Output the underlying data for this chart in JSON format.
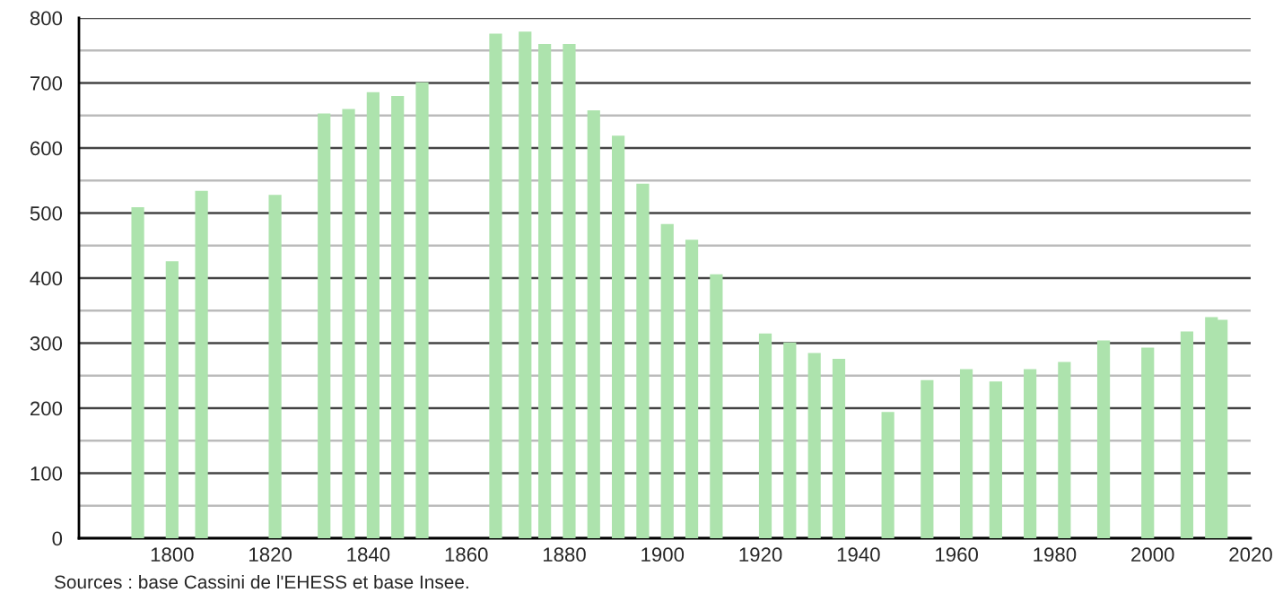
{
  "chart_data": {
    "type": "bar",
    "x": [
      1793,
      1800,
      1806,
      1821,
      1831,
      1836,
      1841,
      1846,
      1851,
      1866,
      1872,
      1876,
      1881,
      1886,
      1891,
      1896,
      1901,
      1906,
      1911,
      1921,
      1926,
      1931,
      1936,
      1946,
      1954,
      1962,
      1968,
      1975,
      1982,
      1990,
      1999,
      2007,
      2012,
      2014
    ],
    "values": [
      509,
      426,
      534,
      528,
      653,
      660,
      686,
      680,
      701,
      776,
      779,
      760,
      760,
      658,
      619,
      545,
      483,
      459,
      406,
      315,
      301,
      285,
      276,
      194,
      243,
      260,
      241,
      260,
      271,
      304,
      293,
      318,
      340,
      336
    ],
    "color": "#ade3ad",
    "xlim": [
      1781,
      2020
    ],
    "xticks": [
      1800,
      1820,
      1840,
      1860,
      1880,
      1900,
      1920,
      1940,
      1960,
      1980,
      2000,
      2020
    ],
    "ylim": [
      0,
      800
    ],
    "yticks": [
      0,
      {
        "value": 50,
        "label": null
      },
      100,
      {
        "value": 150,
        "label": null
      },
      200,
      {
        "value": 250,
        "label": null
      },
      300,
      {
        "value": 350,
        "label": null
      },
      400,
      {
        "value": 450,
        "label": null
      },
      500,
      {
        "value": 550,
        "label": null
      },
      600,
      {
        "value": 650,
        "label": null
      },
      700,
      {
        "value": 750,
        "label": null
      },
      800
    ],
    "grid": "y",
    "annotations": [
      "Sources : base Cassini de l'EHESS et base Insee."
    ]
  }
}
